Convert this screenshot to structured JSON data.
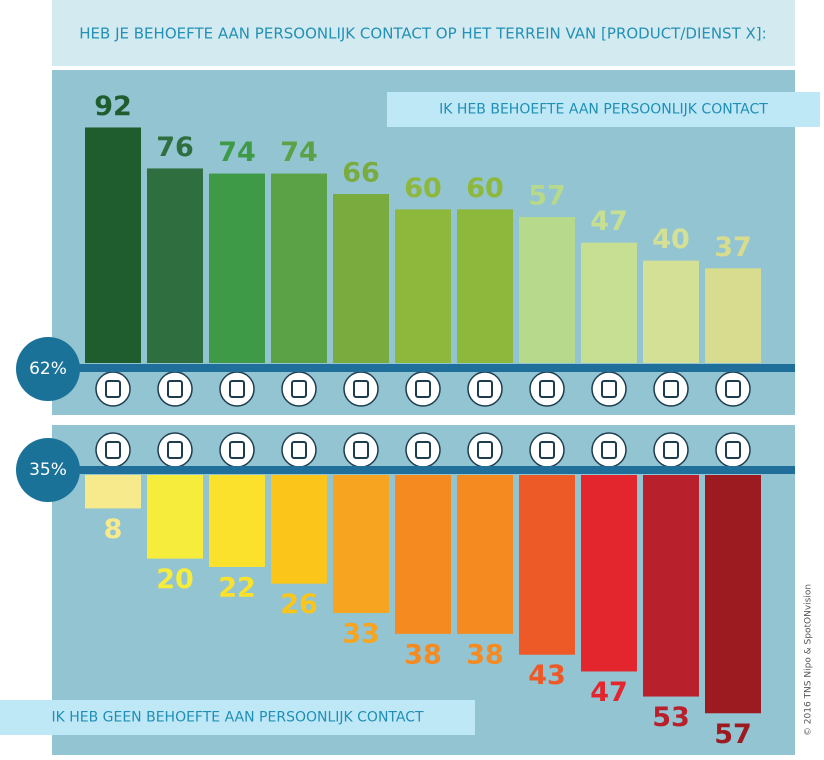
{
  "title": "HEB JE BEHOEFTE AAN PERSOONLIJK CONTACT OP HET TERREIN VAN [PRODUCT/DIENST X]:",
  "copyright": "© 2016 TNS Nipo & SpotONvision",
  "chart_data": [
    {
      "type": "bar",
      "title": "IK HEB BEHOEFTE AAN PERSOONLIJK CONTACT",
      "values": [
        92,
        76,
        74,
        74,
        66,
        60,
        60,
        57,
        47,
        40,
        37
      ],
      "colors": [
        "#1f5c2e",
        "#2f6f3f",
        "#3f9a47",
        "#5ba247",
        "#7aab3f",
        "#8db83c",
        "#8db83c",
        "#b6d98b",
        "#c6df92",
        "#d3e096",
        "#d8dc8e"
      ],
      "average": {
        "value": 62,
        "label": "62%"
      }
    },
    {
      "type": "bar",
      "title": "IK HEB GEEN BEHOEFTE AAN PERSOONLIJK CONTACT",
      "values": [
        8,
        20,
        22,
        26,
        33,
        38,
        38,
        43,
        47,
        53,
        57
      ],
      "colors": [
        "#f7ea8c",
        "#f6ec3b",
        "#fbe12b",
        "#fcc51a",
        "#f7a520",
        "#f58a20",
        "#f58a20",
        "#ee5a27",
        "#e3262e",
        "#b8202b",
        "#9b1b21"
      ],
      "average": {
        "value": 35,
        "label": "35%"
      }
    }
  ]
}
